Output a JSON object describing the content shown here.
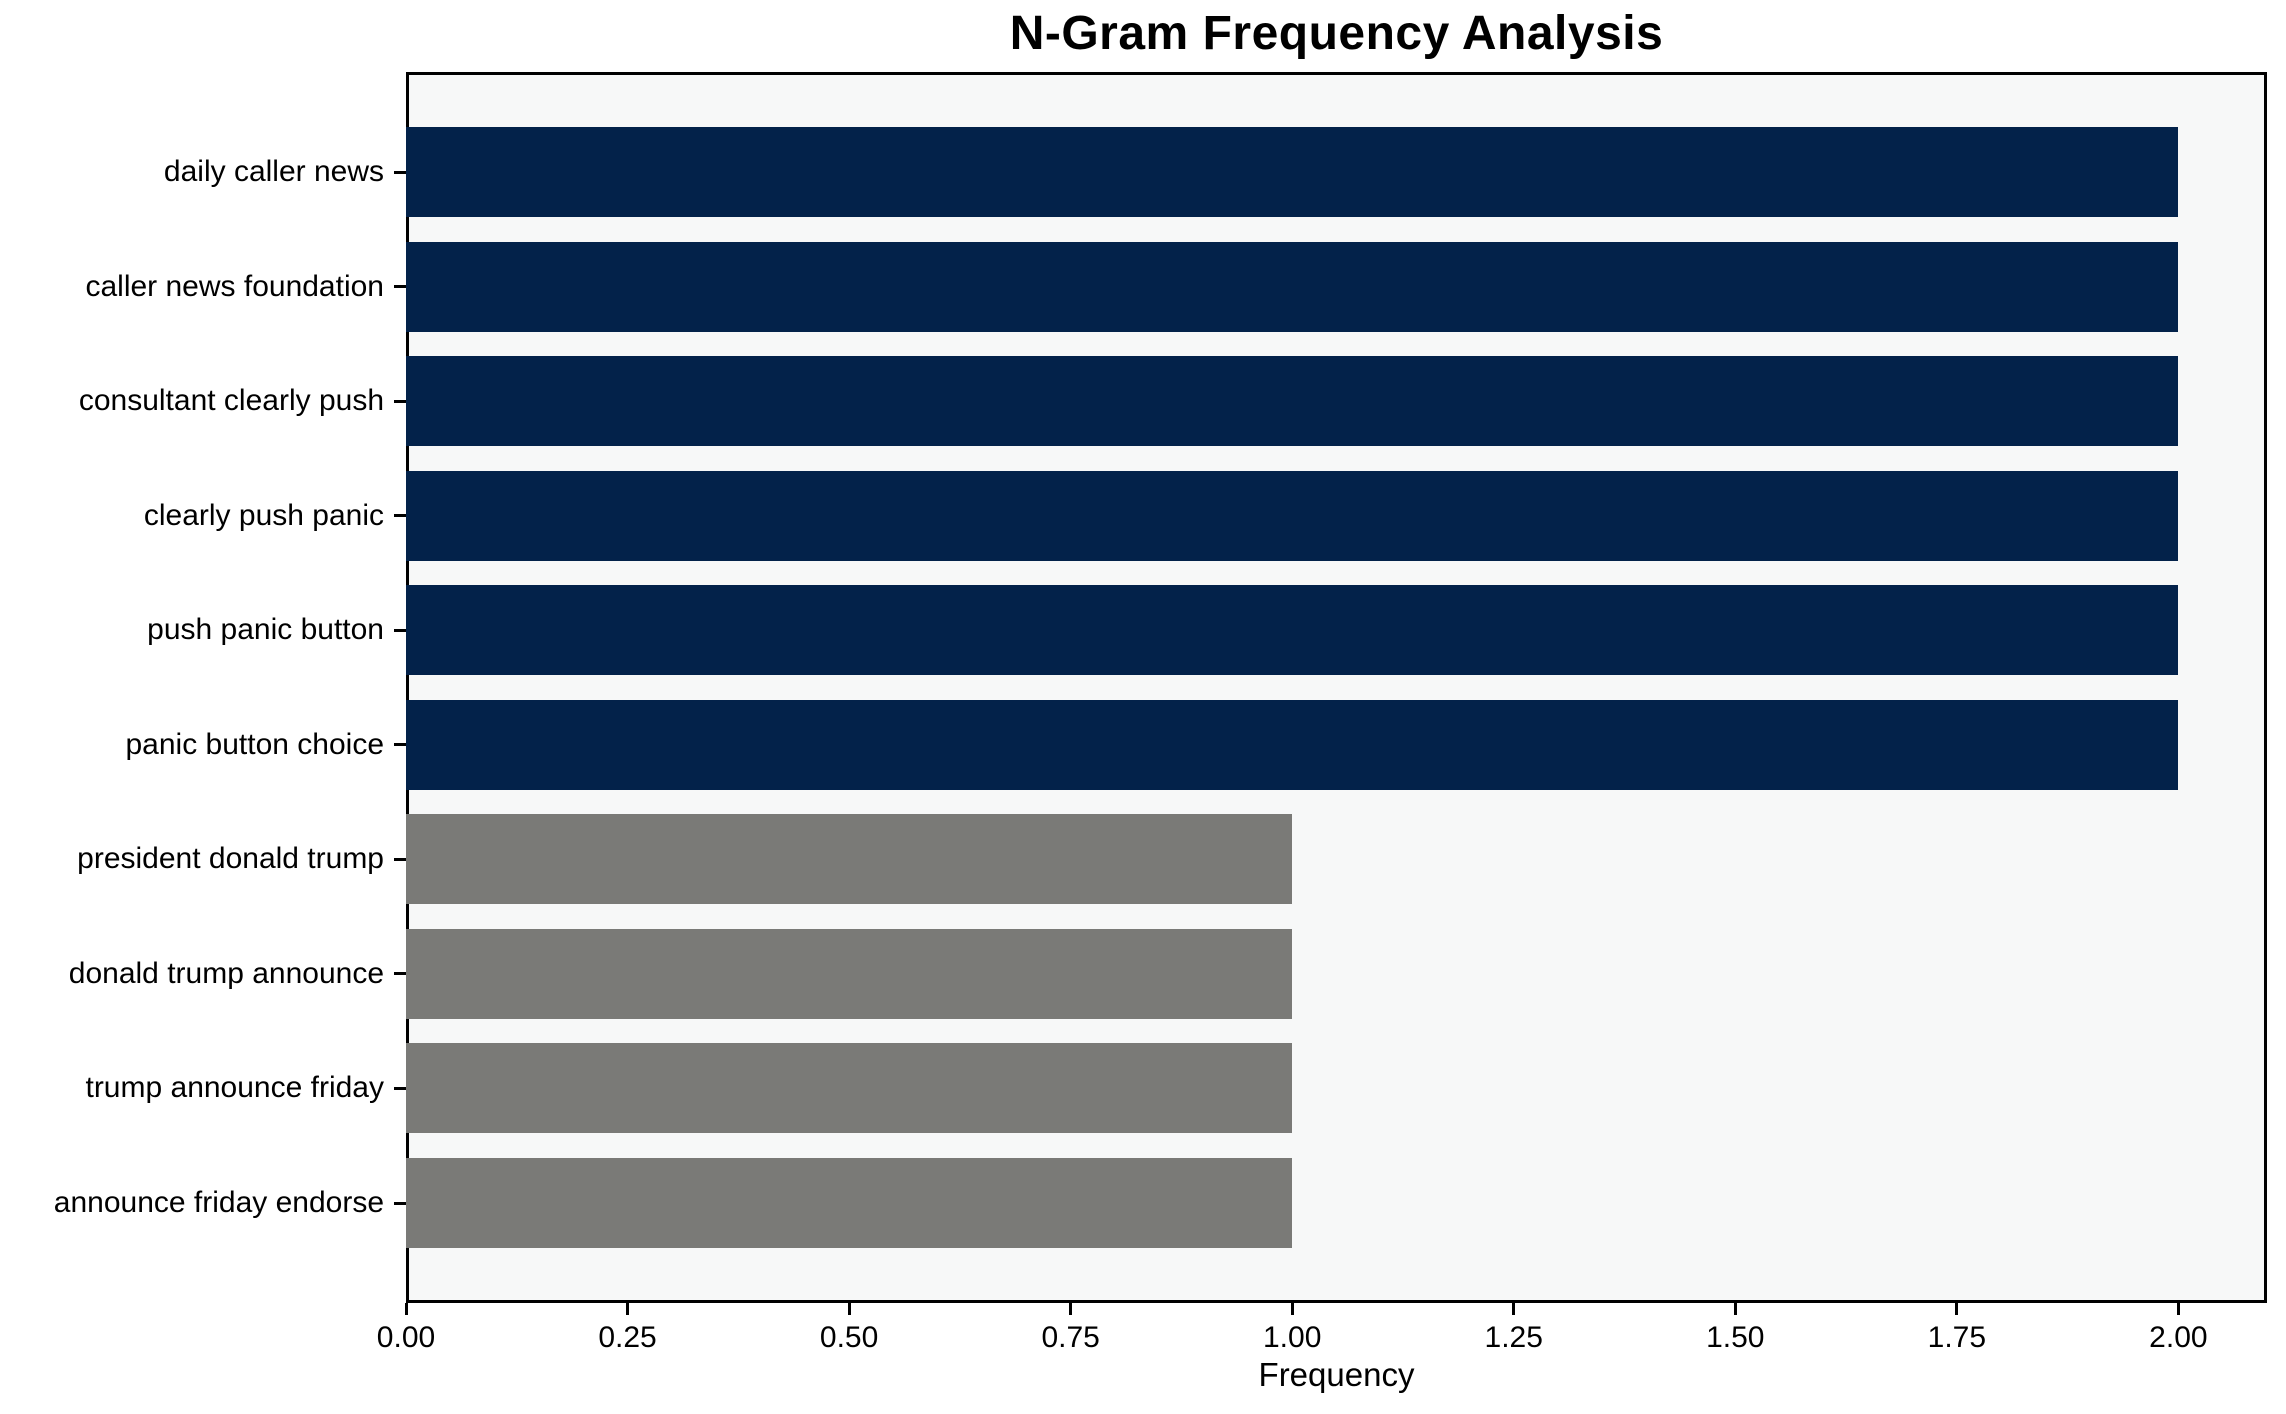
{
  "chart_data": {
    "type": "bar",
    "orientation": "horizontal",
    "title": "N-Gram Frequency Analysis",
    "xlabel": "Frequency",
    "ylabel": "",
    "categories": [
      "daily caller news",
      "caller news foundation",
      "consultant clearly push",
      "clearly push panic",
      "push panic button",
      "panic button choice",
      "president donald trump",
      "donald trump announce",
      "trump announce friday",
      "announce friday endorse"
    ],
    "values": [
      2,
      2,
      2,
      2,
      2,
      2,
      1,
      1,
      1,
      1
    ],
    "bar_colors": [
      "#03224a",
      "#03224a",
      "#03224a",
      "#03224a",
      "#03224a",
      "#03224a",
      "#7a7a77",
      "#7a7a77",
      "#7a7a77",
      "#7a7a77"
    ],
    "xlim": [
      0,
      2.1
    ],
    "xticks": [
      0.0,
      0.25,
      0.5,
      0.75,
      1.0,
      1.25,
      1.5,
      1.75,
      2.0
    ],
    "xtick_labels": [
      "0.00",
      "0.25",
      "0.50",
      "0.75",
      "1.00",
      "1.25",
      "1.50",
      "1.75",
      "2.00"
    ],
    "grid": false,
    "legend": false,
    "colors": {
      "bar_high": "#03224a",
      "bar_low": "#7a7a77",
      "plot_background": "#f7f8f8",
      "figure_background": "#ffffff",
      "spine": "#000000",
      "text": "#000000"
    }
  }
}
